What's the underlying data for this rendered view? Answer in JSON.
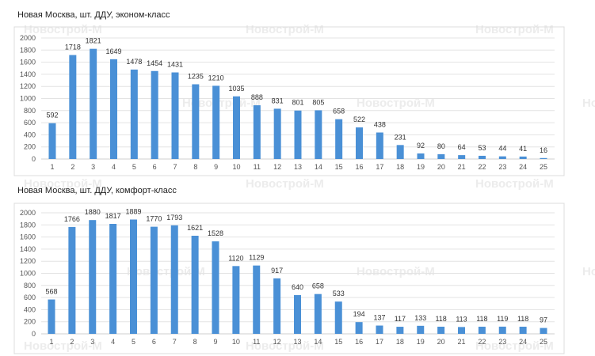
{
  "watermark": "Новострой-М",
  "colors": {
    "bar": "#4a90d6",
    "grid": "#e3e3e3"
  },
  "chart_data": [
    {
      "type": "bar",
      "title": "Новая Москва, шт. ДДУ, эконом-класс",
      "categories": [
        "1",
        "2",
        "3",
        "4",
        "5",
        "6",
        "7",
        "8",
        "9",
        "10",
        "11",
        "12",
        "13",
        "14",
        "15",
        "16",
        "17",
        "18",
        "19",
        "20",
        "21",
        "22",
        "23",
        "24",
        "25"
      ],
      "values": [
        592,
        1718,
        1821,
        1649,
        1478,
        1454,
        1431,
        1235,
        1210,
        1035,
        888,
        831,
        801,
        805,
        658,
        522,
        438,
        231,
        92,
        80,
        64,
        53,
        44,
        41,
        16
      ],
      "yticks": [
        0,
        200,
        400,
        600,
        800,
        1000,
        1200,
        1400,
        1600,
        1800,
        2000
      ],
      "ylim": [
        0,
        2000
      ],
      "grid": true,
      "xlabel": "",
      "ylabel": ""
    },
    {
      "type": "bar",
      "title": "Новая Москва, шт. ДДУ, комфорт-класс",
      "categories": [
        "1",
        "2",
        "3",
        "4",
        "5",
        "6",
        "7",
        "8",
        "9",
        "10",
        "11",
        "12",
        "13",
        "14",
        "15",
        "16",
        "17",
        "18",
        "19",
        "20",
        "21",
        "22",
        "23",
        "24",
        "25"
      ],
      "values": [
        568,
        1766,
        1880,
        1817,
        1889,
        1770,
        1793,
        1621,
        1528,
        1120,
        1129,
        917,
        640,
        658,
        533,
        194,
        137,
        117,
        133,
        118,
        113,
        118,
        119,
        118,
        97
      ],
      "yticks": [
        0,
        200,
        400,
        600,
        800,
        1000,
        1200,
        1400,
        1600,
        1800,
        2000
      ],
      "ylim": [
        0,
        2000
      ],
      "grid": true,
      "xlabel": "",
      "ylabel": ""
    }
  ]
}
